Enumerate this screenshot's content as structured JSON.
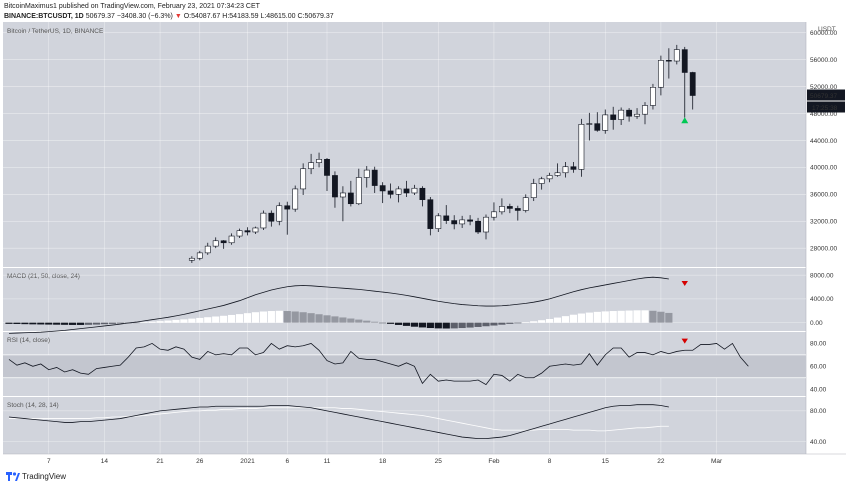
{
  "header": {
    "publisher_line": "BitcoinMaximus1 published on TradingView.com, February 23, 2021 07:34:23 CET",
    "symbol": "BINANCE:BTCUSDT, 1D",
    "last": "50679.37",
    "change": "−3408.30 (−6.3%)",
    "open_label": "O:",
    "open": "54087.67",
    "high_label": "H:",
    "high": "54183.59",
    "low_label": "L:",
    "low": "48615.00",
    "close_label": "C:",
    "close": "50679.37"
  },
  "footer": {
    "brand": "TradingView"
  },
  "colors": {
    "pane_bg": "#d1d4dc",
    "up": "#ffffff",
    "down": "#131722",
    "grid": "#ffffff",
    "rsi_band": "#c3c6cf",
    "arrow_up": "#00c853",
    "arrow_down": "#d50000"
  },
  "chart_data": {
    "type": "candlestick",
    "title": "Bitcoin / TetherUS, 1D, BINANCE",
    "price_axis": {
      "unit": "USDT",
      "ticks": [
        28000,
        32000,
        36000,
        40000,
        44000,
        48000,
        52000,
        56000,
        60000
      ],
      "ylim": [
        25200,
        61600
      ]
    },
    "x_ticks": [
      {
        "label": "7",
        "index": 5
      },
      {
        "label": "14",
        "index": 12
      },
      {
        "label": "21",
        "index": 19
      },
      {
        "label": "26",
        "index": 24
      },
      {
        "label": "2021",
        "index": 30
      },
      {
        "label": "6",
        "index": 35
      },
      {
        "label": "11",
        "index": 40
      },
      {
        "label": "18",
        "index": 47
      },
      {
        "label": "25",
        "index": 54
      },
      {
        "label": "Feb",
        "index": 61
      },
      {
        "label": "8",
        "index": 68
      },
      {
        "label": "15",
        "index": 75
      },
      {
        "label": "22",
        "index": 82
      },
      {
        "label": "Mar",
        "index": 89
      }
    ],
    "last_price_tag": "50679.37",
    "countdown_tag": "17:25:38",
    "first_index": 23,
    "candles": [
      [
        26200,
        26800,
        25800,
        26500
      ],
      [
        26500,
        27600,
        26200,
        27300
      ],
      [
        27300,
        28800,
        27000,
        28300
      ],
      [
        28300,
        29600,
        28000,
        29100
      ],
      [
        29100,
        29200,
        27900,
        28800
      ],
      [
        28800,
        30200,
        28500,
        29800
      ],
      [
        29800,
        30900,
        29500,
        30600
      ],
      [
        30600,
        31100,
        29900,
        30400
      ],
      [
        30400,
        31200,
        30100,
        31000
      ],
      [
        31000,
        33600,
        30700,
        33200
      ],
      [
        33200,
        33600,
        31200,
        32000
      ],
      [
        32000,
        34800,
        31400,
        34300
      ],
      [
        34300,
        34900,
        30000,
        33800
      ],
      [
        33800,
        37300,
        33400,
        36800
      ],
      [
        36800,
        40600,
        35900,
        39800
      ],
      [
        39800,
        42000,
        39000,
        40700
      ],
      [
        40700,
        42200,
        40000,
        41200
      ],
      [
        41200,
        41400,
        36500,
        38800
      ],
      [
        38800,
        39400,
        34000,
        35600
      ],
      [
        35600,
        37200,
        32000,
        36200
      ],
      [
        36200,
        38000,
        34200,
        34600
      ],
      [
        34600,
        39800,
        34400,
        38500
      ],
      [
        38500,
        40200,
        37000,
        39600
      ],
      [
        39600,
        40100,
        36200,
        37300
      ],
      [
        37300,
        37800,
        34700,
        36500
      ],
      [
        36500,
        37600,
        35400,
        36000
      ],
      [
        36000,
        37200,
        34800,
        36800
      ],
      [
        36800,
        38000,
        35600,
        36200
      ],
      [
        36200,
        37400,
        35900,
        36900
      ],
      [
        36900,
        37200,
        34200,
        35200
      ],
      [
        35200,
        35600,
        29900,
        30900
      ],
      [
        30900,
        33200,
        30400,
        32800
      ],
      [
        32800,
        34400,
        31600,
        32100
      ],
      [
        32100,
        32900,
        30800,
        31600
      ],
      [
        31600,
        32800,
        31000,
        32200
      ],
      [
        32200,
        32900,
        31400,
        32000
      ],
      [
        32000,
        32500,
        30100,
        30400
      ],
      [
        30400,
        33000,
        29300,
        32600
      ],
      [
        32600,
        34800,
        32100,
        33400
      ],
      [
        33400,
        35400,
        33000,
        34200
      ],
      [
        34200,
        34600,
        33200,
        33900
      ],
      [
        33900,
        34300,
        32100,
        33600
      ],
      [
        33600,
        36000,
        33300,
        35500
      ],
      [
        35500,
        38300,
        35000,
        37600
      ],
      [
        37600,
        38600,
        36700,
        38300
      ],
      [
        38300,
        39200,
        37800,
        38800
      ],
      [
        38800,
        40600,
        38600,
        39200
      ],
      [
        39200,
        40800,
        38500,
        40100
      ],
      [
        40100,
        40800,
        39200,
        39700
      ],
      [
        39700,
        47200,
        38600,
        46400
      ],
      [
        46400,
        48100,
        44000,
        46500
      ],
      [
        46500,
        48200,
        45300,
        45500
      ],
      [
        45500,
        48600,
        45000,
        47800
      ],
      [
        47800,
        49000,
        45600,
        47100
      ],
      [
        47100,
        48900,
        46300,
        48500
      ],
      [
        48500,
        48800,
        46800,
        47600
      ],
      [
        47600,
        48800,
        47200,
        47900
      ],
      [
        47900,
        49700,
        46400,
        49200
      ],
      [
        49200,
        52400,
        48600,
        51900
      ],
      [
        51900,
        56600,
        50700,
        55900
      ],
      [
        55900,
        57700,
        53200,
        55800
      ],
      [
        55800,
        58200,
        55300,
        57500
      ],
      [
        57500,
        57900,
        47400,
        54100
      ],
      [
        54100,
        54200,
        48600,
        50679
      ]
    ],
    "marker_up_index": 85,
    "marker_up_price": 47000,
    "macd": {
      "label": "MACD (21, 50, close, 24)",
      "ticks": [
        0,
        4000,
        8000
      ],
      "ylim": [
        -1400,
        9200
      ],
      "macd_line": [
        -1800,
        -1750,
        -1700,
        -1650,
        -1600,
        -1500,
        -1400,
        -1300,
        -1150,
        -1000,
        -850,
        -700,
        -550,
        -400,
        -250,
        -50,
        100,
        300,
        500,
        700,
        900,
        1150,
        1400,
        1700,
        2000,
        2300,
        2600,
        2900,
        3300,
        3700,
        4200,
        4700,
        5100,
        5500,
        5800,
        6050,
        6200,
        6250,
        6200,
        6100,
        6000,
        5900,
        5800,
        5700,
        5600,
        5450,
        5300,
        5150,
        5000,
        4800,
        4600,
        4350,
        4100,
        3850,
        3600,
        3400,
        3200,
        3050,
        2950,
        2850,
        2800,
        2800,
        2850,
        2950,
        3100,
        3250,
        3450,
        3700,
        4000,
        4400,
        4800,
        5200,
        5550,
        5850,
        6100,
        6350,
        6600,
        6850,
        7100,
        7350,
        7550,
        7650,
        7550,
        7350
      ],
      "hist": [
        -200,
        -220,
        -250,
        -280,
        -300,
        -320,
        -340,
        -360,
        -380,
        -380,
        -360,
        -320,
        -260,
        -200,
        -140,
        -60,
        20,
        100,
        180,
        260,
        360,
        460,
        560,
        680,
        800,
        920,
        1040,
        1160,
        1300,
        1440,
        1600,
        1760,
        1880,
        1960,
        2000,
        1960,
        1880,
        1760,
        1600,
        1420,
        1240,
        1060,
        880,
        700,
        520,
        340,
        160,
        -20,
        -200,
        -380,
        -540,
        -680,
        -800,
        -900,
        -960,
        -980,
        -960,
        -900,
        -820,
        -720,
        -600,
        -480,
        -340,
        -200,
        -60,
        80,
        240,
        420,
        620,
        860,
        1100,
        1340,
        1540,
        1700,
        1820,
        1900,
        1960,
        2000,
        2040,
        2080,
        2080,
        2000,
        1840,
        1640
      ]
    },
    "rsi": {
      "label": "RSI (14, close)",
      "ticks": [
        40,
        60,
        80
      ],
      "ylim": [
        34,
        90
      ],
      "band": [
        50,
        70
      ],
      "values": [
        66,
        61,
        63,
        60,
        62,
        57,
        59,
        55,
        57,
        54,
        53,
        58,
        59,
        60,
        61,
        68,
        76,
        77,
        80,
        75,
        74,
        77,
        75,
        68,
        66,
        73,
        70,
        71,
        70,
        76,
        76,
        70,
        72,
        80,
        75,
        78,
        77,
        78,
        80,
        74,
        65,
        62,
        63,
        73,
        67,
        66,
        66,
        64,
        62,
        60,
        63,
        60,
        45,
        53,
        47,
        48,
        47,
        47,
        47,
        48,
        44,
        53,
        52,
        47,
        53,
        50,
        50,
        54,
        60,
        61,
        62,
        61,
        62,
        71,
        61,
        70,
        76,
        76,
        68,
        72,
        72,
        70,
        73,
        71,
        73,
        74,
        74,
        79,
        79,
        80,
        75,
        80,
        68,
        60
      ],
      "marker_down_index": 85,
      "marker_down_value": 79
    },
    "stoch": {
      "label": "Stoch (14, 28, 14)",
      "ticks": [
        40,
        80
      ],
      "ylim": [
        24,
        98
      ],
      "k": [
        72,
        71,
        70,
        69,
        68,
        67,
        66,
        65,
        65,
        66,
        66,
        67,
        68,
        69,
        70,
        72,
        74,
        76,
        78,
        80,
        81,
        82,
        83,
        84,
        85,
        85,
        86,
        86,
        86,
        86,
        86,
        86,
        86,
        87,
        87,
        87,
        86,
        85,
        84,
        82,
        80,
        78,
        76,
        74,
        72,
        70,
        68,
        66,
        64,
        62,
        60,
        58,
        56,
        54,
        52,
        50,
        48,
        46,
        45,
        44,
        44,
        45,
        46,
        48,
        51,
        54,
        57,
        60,
        63,
        66,
        69,
        72,
        75,
        78,
        81,
        84,
        86,
        87,
        87,
        88,
        88,
        88,
        87,
        85
      ],
      "d": [
        70,
        70,
        70,
        70,
        70,
        70,
        70,
        70,
        70,
        70,
        70,
        71,
        71,
        72,
        72,
        73,
        73,
        74,
        75,
        76,
        77,
        78,
        79,
        80,
        80,
        81,
        81,
        82,
        82,
        83,
        83,
        83,
        84,
        84,
        84,
        84,
        84,
        84,
        84,
        84,
        84,
        84,
        83,
        83,
        82,
        81,
        80,
        79,
        78,
        77,
        76,
        75,
        74,
        72,
        70,
        68,
        66,
        64,
        62,
        60,
        58,
        56,
        55,
        55,
        55,
        55,
        55,
        56,
        56,
        56,
        56,
        55,
        55,
        55,
        54,
        54,
        55,
        56,
        57,
        58,
        58,
        59,
        60,
        60
      ]
    }
  }
}
